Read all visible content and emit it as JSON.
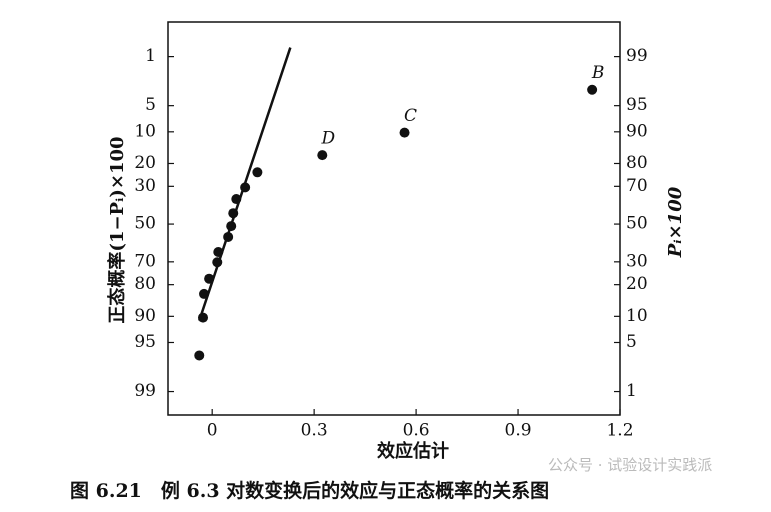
{
  "chart_data": {
    "type": "scatter",
    "title": "图 6.21　例 6.3 对数变换后的效应与正态概率的关系图",
    "watermark": "公众号 · 试验设计实践派",
    "xlabel": "效应估计",
    "ylabel": "正态概率(1−Pᵢ)×100",
    "y2label": "Pᵢ×100",
    "yscale": "probit",
    "xlim": [
      -0.13,
      1.2
    ],
    "xticks": [
      0,
      0.3,
      0.6,
      0.9,
      1.2
    ],
    "ylim": [
      0.25,
      99.6
    ],
    "yticks": [
      1,
      5,
      10,
      20,
      30,
      50,
      70,
      80,
      90,
      95,
      99
    ],
    "y2lim": [
      99.75,
      0.4
    ],
    "y2ticks": [
      99,
      95,
      90,
      80,
      70,
      50,
      30,
      20,
      10,
      5,
      1
    ],
    "color": "#111",
    "series": [
      {
        "x": [
          -0.038,
          -0.027,
          -0.024,
          -0.009,
          0.015,
          0.018,
          0.047,
          0.056,
          0.062,
          0.071,
          0.097,
          0.133,
          0.324,
          0.566,
          1.118
        ],
        "values": [
          96.6,
          90.3,
          83.4,
          77.6,
          70.2,
          65.1,
          57.1,
          51.1,
          44,
          36.4,
          30.5,
          23.6,
          16.9,
          10.2,
          3.1
        ],
        "point_labels": [
          null,
          null,
          null,
          null,
          null,
          null,
          null,
          null,
          null,
          null,
          null,
          null,
          "D",
          "C",
          "B"
        ]
      },
      {
        "type": "line",
        "x": [
          -0.038,
          0.23
        ],
        "values": [
          91,
          0.71
        ]
      }
    ]
  }
}
